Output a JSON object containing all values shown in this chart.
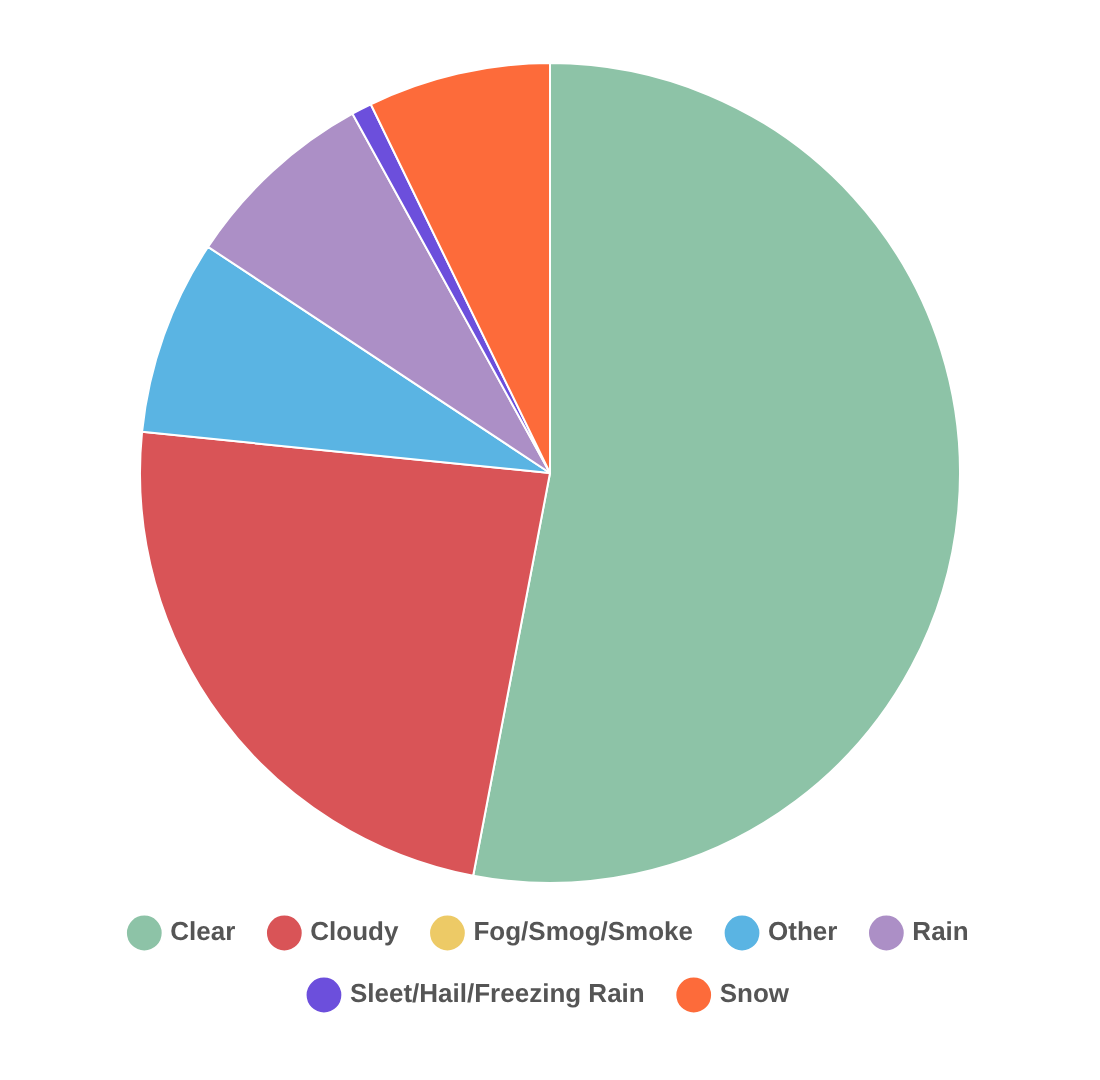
{
  "chart_data": {
    "type": "pie",
    "categories": [
      "Clear",
      "Cloudy",
      "Fog/Smog/Smoke",
      "Other",
      "Rain",
      "Sleet/Hail/Freezing Rain",
      "Snow"
    ],
    "values": [
      53.0,
      23.6,
      0,
      7.7,
      7.7,
      0.8,
      7.2
    ],
    "colors": [
      "#8dc3a7",
      "#d95457",
      "#edca66",
      "#5ab4e3",
      "#ac8fc6",
      "#6c4fdc",
      "#fd6b3a"
    ],
    "legend": "bottom"
  }
}
